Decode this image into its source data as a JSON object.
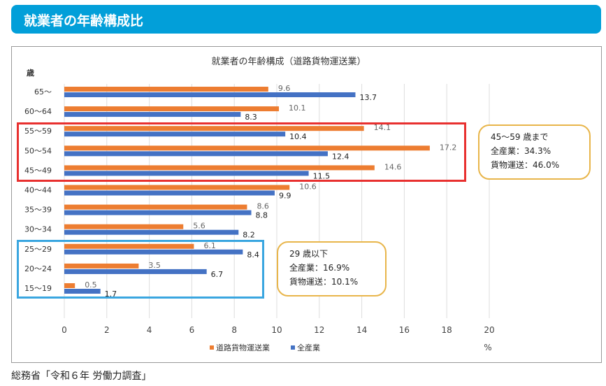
{
  "header": {
    "title": "就業者の年齢構成比"
  },
  "chart_data": {
    "type": "bar",
    "orientation": "horizontal",
    "title": "就業者の年齢構成（道路貨物運送業）",
    "ylabel": "歳",
    "xlabel": "%",
    "xlim": [
      0,
      20
    ],
    "xticks": [
      0,
      2,
      4,
      6,
      8,
      10,
      12,
      14,
      16,
      18,
      20
    ],
    "grid": true,
    "legend_position": "bottom",
    "categories": [
      "65〜",
      "60〜64",
      "55〜59",
      "50〜54",
      "45〜49",
      "40〜44",
      "35〜39",
      "30〜34",
      "25〜29",
      "20〜24",
      "15〜19"
    ],
    "series": [
      {
        "name": "道路貨物運送業",
        "color": "#ed7d31",
        "values": [
          9.6,
          10.1,
          14.1,
          17.2,
          14.6,
          10.6,
          8.6,
          5.6,
          6.1,
          3.5,
          0.5
        ]
      },
      {
        "name": "全産業",
        "color": "#4472c4",
        "values": [
          13.7,
          8.3,
          10.4,
          12.4,
          11.5,
          9.9,
          8.8,
          8.2,
          8.4,
          6.7,
          1.7
        ]
      }
    ]
  },
  "notes": [
    {
      "lines": [
        "45〜59 歳まで",
        "全産業：34.3%",
        "貨物運送：46.0%"
      ]
    },
    {
      "lines": [
        "29 歳以下",
        "全産業：16.9%",
        "貨物運送：10.1%"
      ]
    }
  ],
  "source": "総務省「令和６年 労働力調査」"
}
